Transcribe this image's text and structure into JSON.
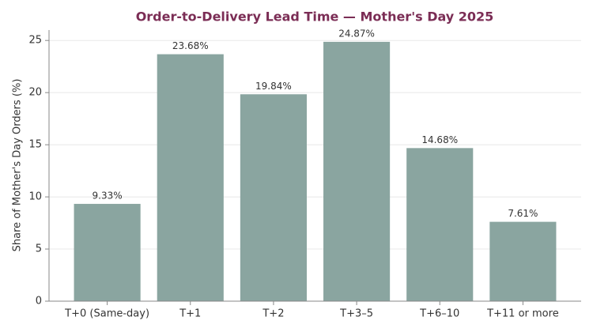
{
  "chart_data": {
    "type": "bar",
    "title": "Order-to-Delivery Lead Time — Mother's Day 2025",
    "ylabel": "Share of Mother's Day Orders (%)",
    "categories": [
      "T+0 (Same-day)",
      "T+1",
      "T+2",
      "T+3–5",
      "T+6–10",
      "T+11 or more"
    ],
    "values": [
      9.33,
      23.68,
      19.84,
      24.87,
      14.68,
      7.61
    ],
    "value_labels": [
      "9.33%",
      "23.68%",
      "19.84%",
      "24.87%",
      "14.68%",
      "7.61%"
    ],
    "color": "#8aa5a0",
    "ylim": [
      0,
      26
    ],
    "yticks": [
      0,
      5,
      10,
      15,
      20,
      25
    ],
    "grid": true
  }
}
